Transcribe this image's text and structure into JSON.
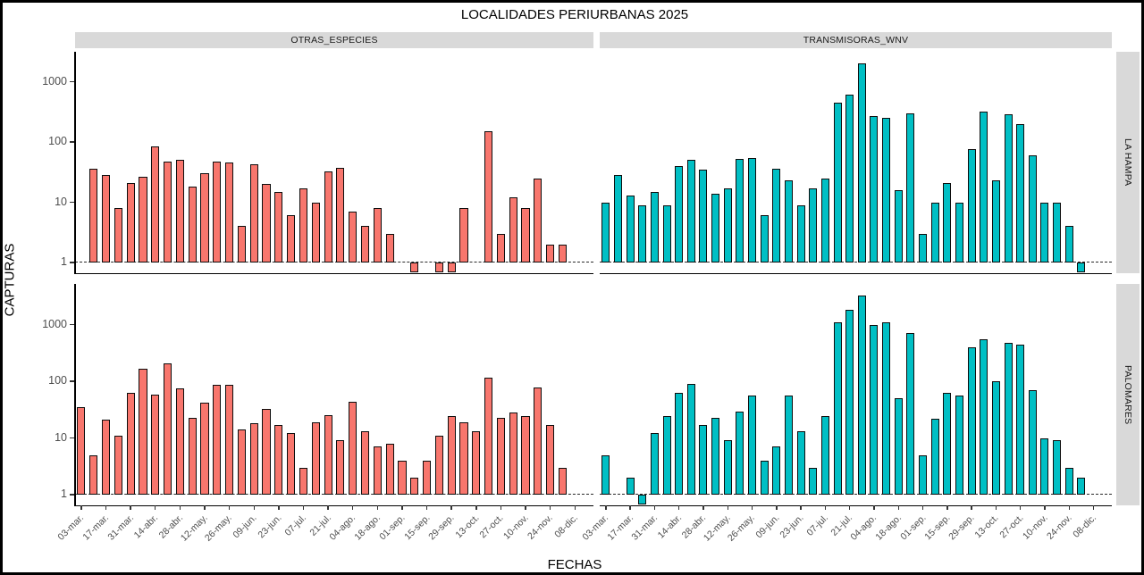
{
  "title": "LOCALIDADES PERIURBANAS 2025",
  "axes": {
    "x_title": "FECHAS",
    "y_title": "CAPTURAS",
    "y_tick_labels": [
      "1000",
      "100",
      "10",
      "1"
    ]
  },
  "facets": {
    "columns": [
      "OTRAS_ESPECIES",
      "TRANSMISORAS_WNV"
    ],
    "rows": [
      "LA HAMPA",
      "PALOMARES"
    ]
  },
  "colors": {
    "otras_especies": "#F8766D",
    "transmisoras_wnv": "#00BFC4",
    "strip_bg": "#D9D9D9",
    "tick_text": "#4D4D4D",
    "axis_line": "#000000",
    "bar_outline": "#0D0D0D"
  },
  "chart_data": {
    "type": "bar",
    "title": "LOCALIDADES PERIURBANAS 2025",
    "xlabel": "FECHAS",
    "ylabel": "CAPTURAS",
    "y_scale": "log10",
    "y_ticks": [
      1,
      10,
      100,
      1000
    ],
    "grid": "off",
    "baseline_dashed_at": 1,
    "x_tick_labels": [
      "03-mar.",
      "17-mar.",
      "31-mar.",
      "14-abr.",
      "28-abr.",
      "12-may.",
      "26-may.",
      "09-jun.",
      "23-jun.",
      "07-jul.",
      "21-jul.",
      "04-ago.",
      "18-ago.",
      "01-sep.",
      "15-sep.",
      "29-sep.",
      "13-oct.",
      "27-oct.",
      "10-nov.",
      "24-nov.",
      "08-dic."
    ],
    "x_structure": "42 weekly slots; axis labels mark every second slot (slots 1,3,5,...41); null = no bar at that week; 1 = stub bar drawn from baseline down to axis",
    "panels": [
      {
        "row": "LA HAMPA",
        "col": "OTRAS_ESPECIES",
        "color": "#F8766D",
        "values": [
          null,
          36,
          28,
          8,
          21,
          26,
          85,
          48,
          50,
          18,
          30,
          47,
          45,
          4,
          42,
          20,
          15,
          6,
          17,
          10,
          33,
          37,
          7,
          4,
          8,
          3,
          null,
          1,
          null,
          1,
          1,
          8,
          null,
          150,
          3,
          12,
          8,
          25,
          2,
          2,
          null,
          null
        ]
      },
      {
        "row": "LA HAMPA",
        "col": "TRANSMISORAS_WNV",
        "color": "#00BFC4",
        "values": [
          10,
          28,
          13,
          9,
          15,
          9,
          40,
          50,
          35,
          14,
          17,
          53,
          55,
          6,
          36,
          23,
          9,
          17,
          25,
          450,
          600,
          2000,
          270,
          250,
          16,
          300,
          3,
          10,
          21,
          10,
          75,
          320,
          23,
          290,
          200,
          60,
          10,
          10,
          4,
          1,
          null,
          null
        ]
      },
      {
        "row": "PALOMARES",
        "col": "OTRAS_ESPECIES",
        "color": "#F8766D",
        "values": [
          35,
          5,
          21,
          11,
          62,
          165,
          58,
          210,
          75,
          23,
          42,
          85,
          85,
          14,
          18,
          33,
          17,
          12,
          3,
          19,
          25,
          9,
          43,
          13,
          7,
          8,
          4,
          2,
          4,
          11,
          24,
          19,
          13,
          115,
          23,
          28,
          24,
          78,
          17,
          3,
          null,
          null
        ]
      },
      {
        "row": "PALOMARES",
        "col": "TRANSMISORAS_WNV",
        "color": "#00BFC4",
        "values": [
          5,
          null,
          2,
          1,
          12,
          24,
          62,
          90,
          17,
          23,
          9,
          29,
          55,
          4,
          7,
          55,
          13,
          3,
          24,
          1100,
          1800,
          3300,
          1000,
          1100,
          50,
          700,
          5,
          22,
          63,
          55,
          400,
          550,
          100,
          480,
          440,
          70,
          10,
          9,
          3,
          2,
          null,
          null
        ]
      }
    ]
  }
}
